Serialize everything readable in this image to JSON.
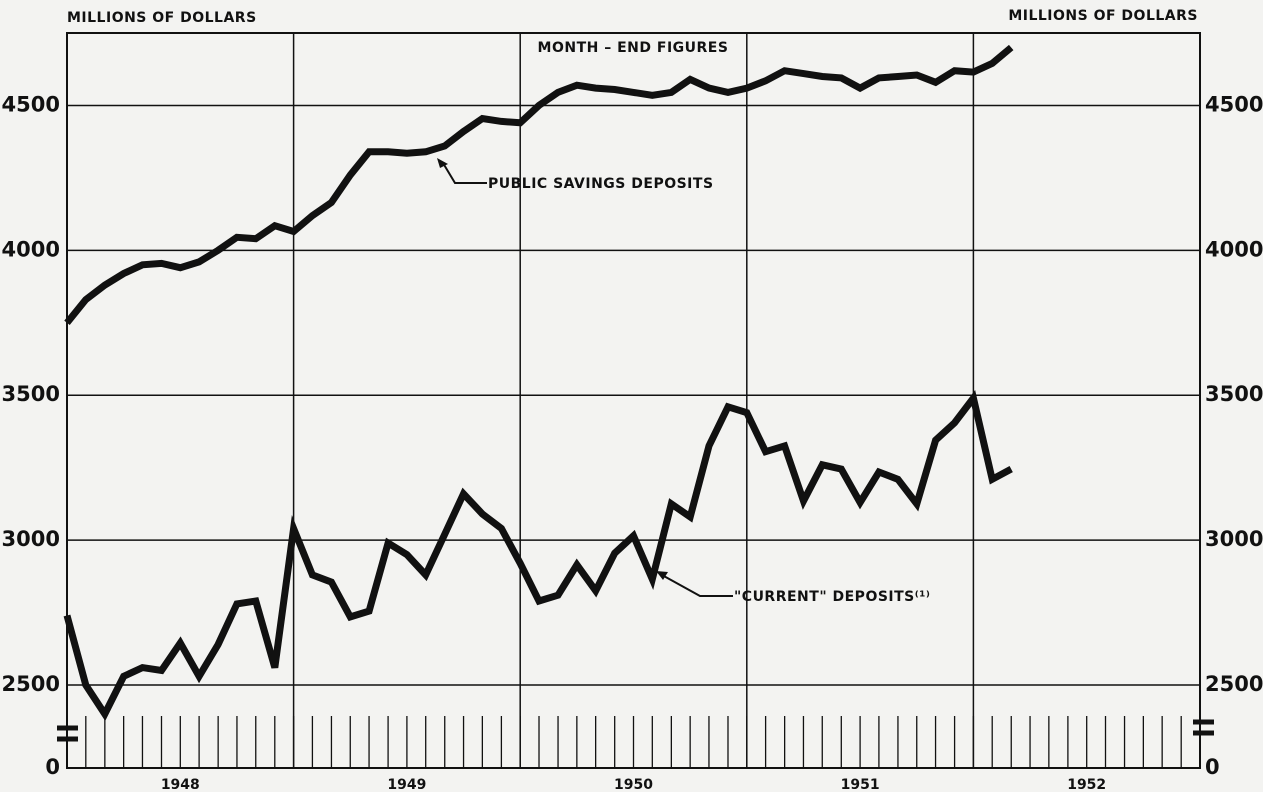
{
  "chart_data": {
    "type": "line",
    "title": "MONTH – END FIGURES",
    "y_label": "MILLIONS OF DOLLARS",
    "y2_label": "MILLIONS OF DOLLARS",
    "xlim": [
      1948,
      1953
    ],
    "xticks": [
      {
        "value": 1948.5,
        "label": "1948"
      },
      {
        "value": 1949.5,
        "label": "1949"
      },
      {
        "value": 1950.5,
        "label": "1950"
      },
      {
        "value": 1951.5,
        "label": "1951"
      },
      {
        "value": 1952.5,
        "label": "1952"
      }
    ],
    "xgrid": [
      1949,
      1950,
      1951,
      1952
    ],
    "minor_xticks": [
      1948,
      1948.083,
      1948.167,
      1948.25,
      1948.333,
      1948.417,
      1948.5,
      1948.583,
      1948.667,
      1948.75,
      1948.833,
      1948.917,
      1949,
      1949.083,
      1949.167,
      1949.25,
      1949.333,
      1949.417,
      1949.5,
      1949.583,
      1949.667,
      1949.75,
      1949.833,
      1949.917,
      1950,
      1950.083,
      1950.167,
      1950.25,
      1950.333,
      1950.417,
      1950.5,
      1950.583,
      1950.667,
      1950.75,
      1950.833,
      1950.917,
      1951,
      1951.083,
      1951.167,
      1951.25,
      1951.333,
      1951.417,
      1951.5,
      1951.583,
      1951.667,
      1951.75,
      1951.833,
      1951.917,
      1952,
      1952.083,
      1952.167,
      1952.25,
      1952.333,
      1952.417,
      1952.5,
      1952.583,
      1952.667,
      1952.75,
      1952.833,
      1952.917,
      1953
    ],
    "ylim": [
      2400,
      4750
    ],
    "yticks": [
      0,
      2500,
      3000,
      3500,
      4000,
      4500
    ],
    "y2lim": [
      2400,
      4750
    ],
    "y2ticks": [
      0,
      2500,
      3000,
      3500,
      4000,
      4500
    ],
    "axis_break": true,
    "grid": true,
    "x": [
      1948,
      1948.083,
      1948.167,
      1948.25,
      1948.333,
      1948.417,
      1948.5,
      1948.583,
      1948.667,
      1948.75,
      1948.833,
      1948.917,
      1949,
      1949.083,
      1949.167,
      1949.25,
      1949.333,
      1949.417,
      1949.5,
      1949.583,
      1949.667,
      1949.75,
      1949.833,
      1949.917,
      1950,
      1950.083,
      1950.167,
      1950.25,
      1950.333,
      1950.417,
      1950.5,
      1950.583,
      1950.667,
      1950.75,
      1950.833,
      1950.917,
      1951,
      1951.083,
      1951.167,
      1951.25,
      1951.333,
      1951.417,
      1951.5,
      1951.583,
      1951.667,
      1951.75,
      1951.833,
      1951.917,
      1952,
      1952.083,
      1952.167
    ],
    "series": [
      {
        "name": "PUBLIC SAVINGS DEPOSITS",
        "color": "#111111",
        "values": [
          3750,
          3830,
          3880,
          3920,
          3950,
          3955,
          3940,
          3960,
          4000,
          4045,
          4040,
          4085,
          4065,
          4120,
          4165,
          4260,
          4340,
          4340,
          4335,
          4340,
          4360,
          4410,
          4455,
          4445,
          4440,
          4500,
          4545,
          4570,
          4560,
          4555,
          4545,
          4535,
          4545,
          4590,
          4560,
          4545,
          4560,
          4585,
          4620,
          4610,
          4600,
          4595,
          4560,
          4595,
          4600,
          4605,
          4580,
          4620,
          4615,
          4645,
          4700
        ]
      },
      {
        "name": "\"CURRENT\" DEPOSITS⁽¹⁾",
        "color": "#111111",
        "values": [
          2740,
          2500,
          2400,
          2530,
          2560,
          2550,
          2645,
          2530,
          2640,
          2780,
          2790,
          2560,
          3040,
          2880,
          2855,
          2735,
          2755,
          2990,
          2950,
          2880,
          3020,
          3160,
          3090,
          3040,
          2920,
          2790,
          2810,
          2915,
          2825,
          2955,
          3015,
          2865,
          3125,
          3080,
          3325,
          3460,
          3440,
          3305,
          3325,
          3135,
          3260,
          3245,
          3130,
          3235,
          3210,
          3125,
          3345,
          3405,
          3490,
          3210,
          3245
        ]
      }
    ]
  }
}
